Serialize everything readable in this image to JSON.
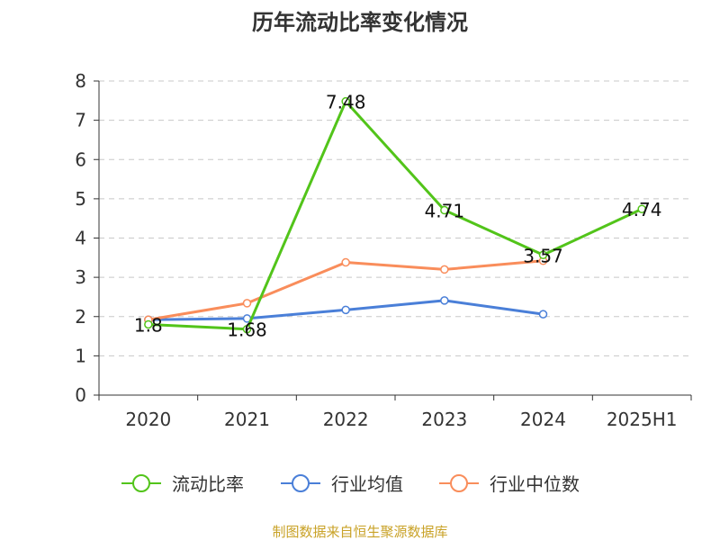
{
  "chart_data": {
    "type": "line",
    "title": "历年流动比率变化情况",
    "categories": [
      "2020",
      "2021",
      "2022",
      "2023",
      "2024",
      "2025H1"
    ],
    "ylim": [
      0,
      8
    ],
    "yticks": [
      0,
      1,
      2,
      3,
      4,
      5,
      6,
      7,
      8
    ],
    "grid": true,
    "legend_position": "bottom",
    "series": [
      {
        "name": "流动比率",
        "color": "#52c41a",
        "values": [
          1.8,
          1.68,
          7.48,
          4.71,
          3.57,
          4.74
        ],
        "labels": [
          "1.8",
          "1.68",
          "7.48",
          "4.71",
          "3.57",
          "4.74"
        ]
      },
      {
        "name": "行业均值",
        "color": "#4a7fd8",
        "values": [
          1.92,
          1.95,
          2.17,
          2.41,
          2.06,
          null
        ]
      },
      {
        "name": "行业中位数",
        "color": "#f98d5b",
        "values": [
          1.92,
          2.34,
          3.38,
          3.2,
          3.42,
          null
        ]
      }
    ]
  },
  "source": {
    "text": "制图数据来自恒生聚源数据库",
    "color": "#c9a227"
  }
}
